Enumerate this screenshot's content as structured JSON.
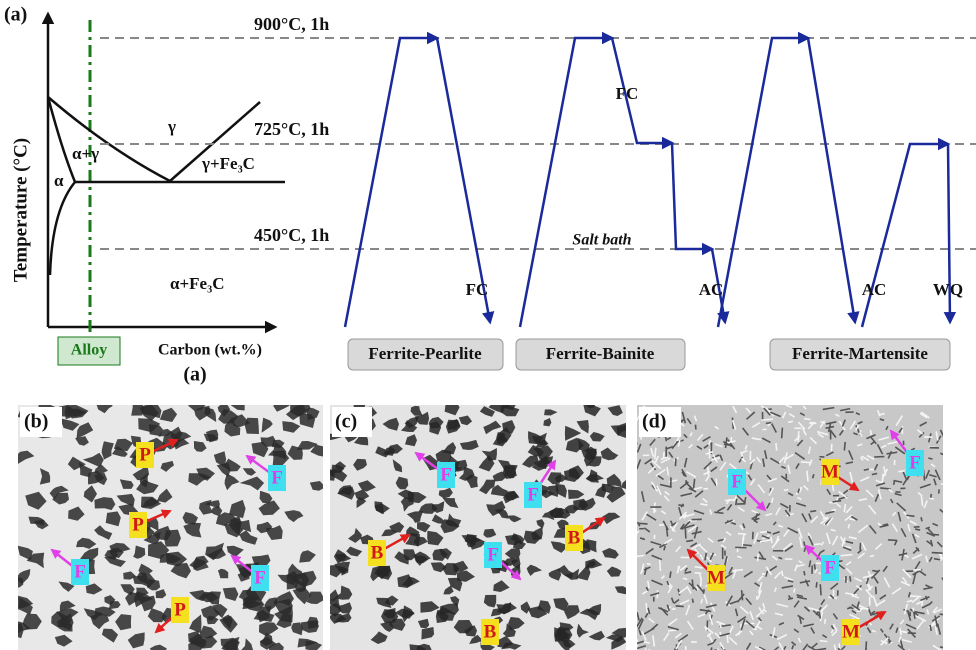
{
  "panel_a": {
    "label": "(a)",
    "y_axis": "Temperature (°C)",
    "x_axis": "Carbon (wt.%)",
    "alloy": "Alloy",
    "caption": "(a)",
    "phases": [
      "γ",
      "α+γ",
      "α",
      "γ+Fe₃C",
      "α+Fe₃C"
    ],
    "temperatures": [
      "900°C, 1h",
      "725°C, 1h",
      "450°C, 1h"
    ],
    "routes": [
      {
        "name": "Ferrite-Pearlite",
        "labels": [
          "FC"
        ]
      },
      {
        "name": "Ferrite-Bainite",
        "labels": [
          "FC",
          "Salt bath",
          "AC"
        ]
      },
      {
        "name": "Ferrite-Martensite",
        "labels": [
          "AC",
          "WQ"
        ]
      }
    ]
  },
  "micrographs": [
    {
      "label": "(b)",
      "markers": [
        "P",
        "F",
        "P",
        "F",
        "F",
        "P"
      ]
    },
    {
      "label": "(c)",
      "markers": [
        "F",
        "F",
        "B",
        "B",
        "F",
        "B"
      ]
    },
    {
      "label": "(d)",
      "markers": [
        "F",
        "M",
        "F",
        "M",
        "F",
        "M"
      ]
    }
  ]
}
